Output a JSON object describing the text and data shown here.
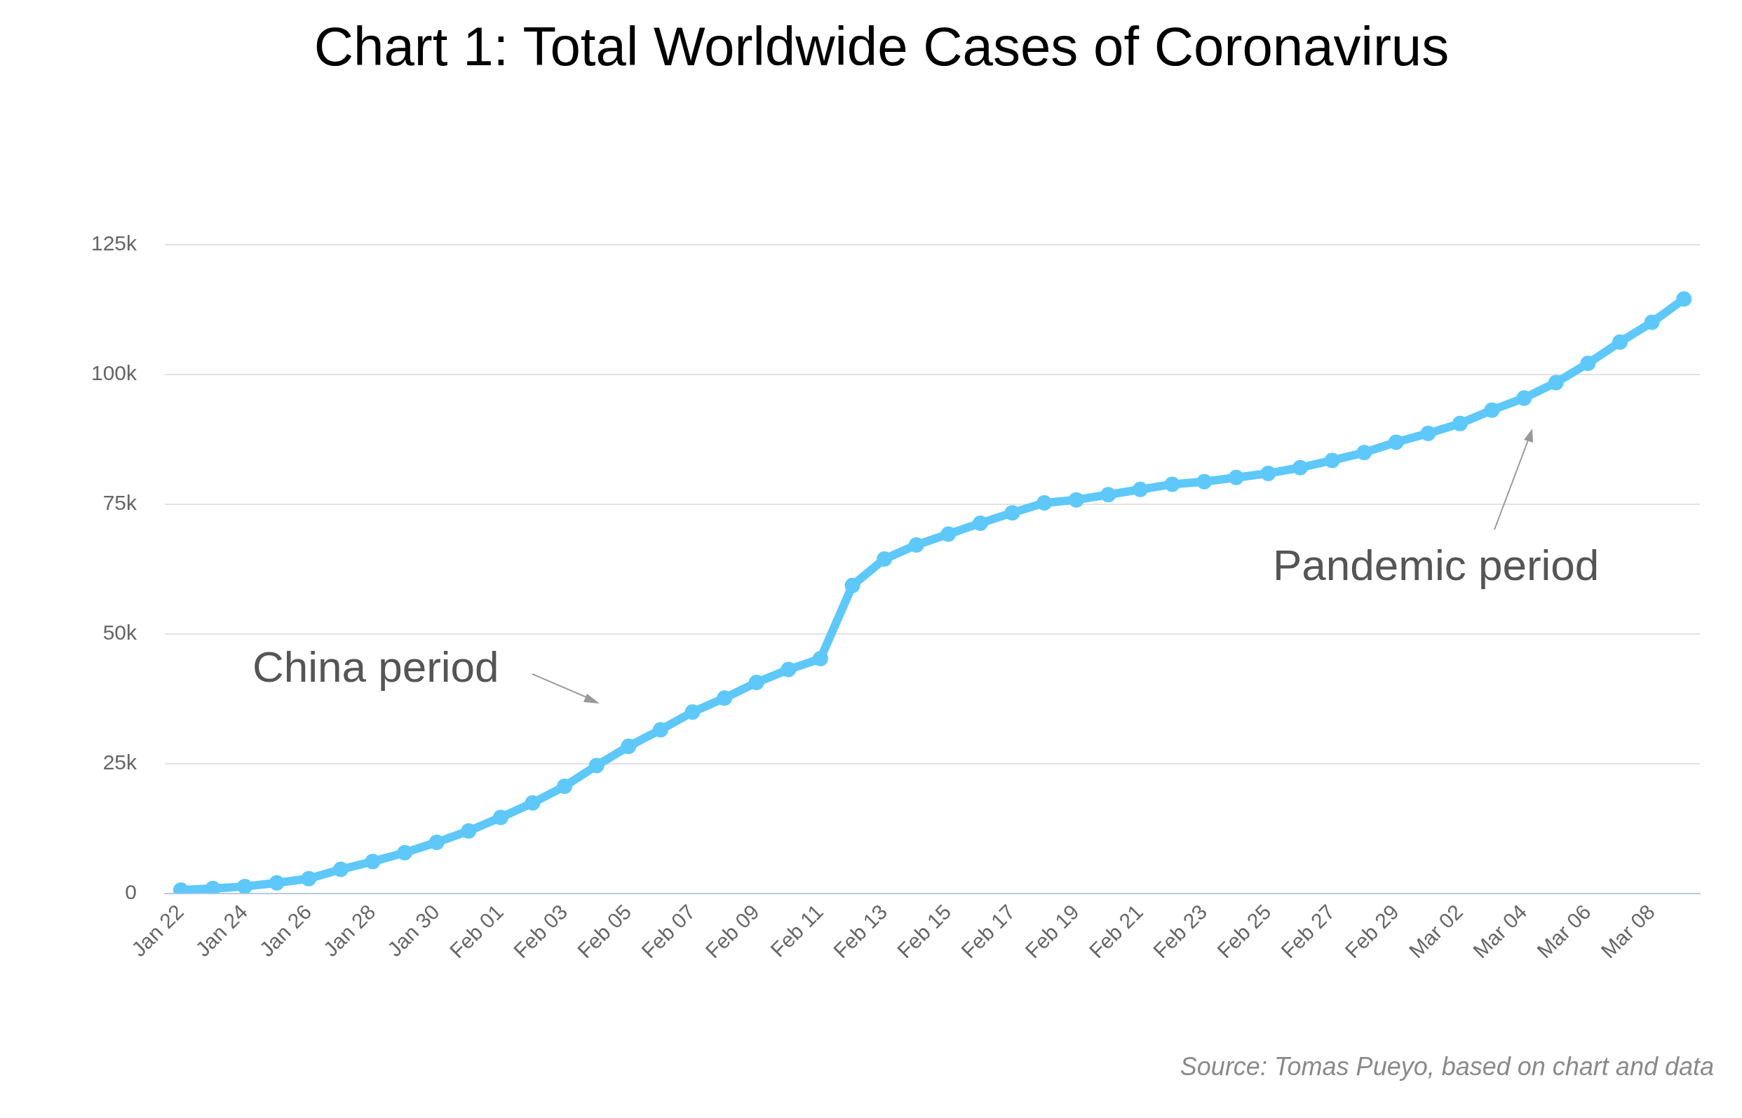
{
  "chart_data": {
    "type": "line",
    "title": "Chart 1: Total Worldwide Cases of Coronavirus",
    "categories": [
      "Jan 22",
      null,
      "Jan 24",
      null,
      "Jan 26",
      null,
      "Jan 28",
      null,
      "Jan 30",
      null,
      "Feb 01",
      null,
      "Feb 03",
      null,
      "Feb 05",
      null,
      "Feb 07",
      null,
      "Feb 09",
      null,
      "Feb 11",
      null,
      "Feb 13",
      null,
      "Feb 15",
      null,
      "Feb 17",
      null,
      "Feb 19",
      null,
      "Feb 21",
      null,
      "Feb 23",
      null,
      "Feb 25",
      null,
      "Feb 27",
      null,
      "Feb 29",
      null,
      "Mar 02",
      null,
      "Mar 04",
      null,
      "Mar 06",
      null,
      "Mar 08",
      null
    ],
    "series": [
      {
        "color": "#5ec8fa",
        "values": [
          600,
          900,
          1300,
          2000,
          2800,
          4600,
          6100,
          7800,
          9800,
          12000,
          14600,
          17400,
          20600,
          24600,
          28300,
          31500,
          34900,
          37600,
          40600,
          43100,
          45200,
          59300,
          64400,
          67100,
          69200,
          71300,
          73300,
          75200,
          75800,
          76800,
          77800,
          78800,
          79300,
          80100,
          80900,
          82000,
          83400,
          84900,
          86900,
          88600,
          90500,
          93100,
          95400,
          98400,
          102100,
          106200,
          110000,
          114500
        ]
      }
    ],
    "ylim": [
      0,
      125000
    ],
    "yticks": [
      {
        "value": 0,
        "label": "0"
      },
      {
        "value": 25000,
        "label": "25k"
      },
      {
        "value": 50000,
        "label": "50k"
      },
      {
        "value": 75000,
        "label": "75k"
      },
      {
        "value": 100000,
        "label": "100k"
      },
      {
        "value": 125000,
        "label": "125k"
      }
    ],
    "grid": "y",
    "legend": false,
    "marker": "circle",
    "line_style": "solid",
    "annotations": [
      "China period",
      "Pandemic period",
      "Source: Tomas Pueyo, based on chart and data"
    ]
  }
}
